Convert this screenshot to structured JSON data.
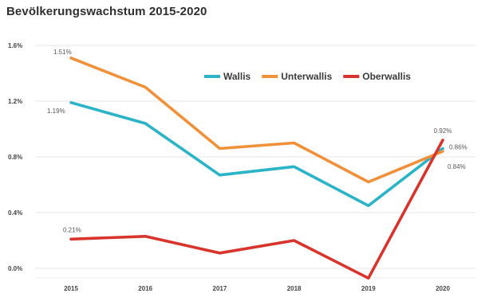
{
  "title": "Bevölkerungswachstum 2015-2020",
  "chart_data": {
    "type": "line",
    "title": "Bevölkerungswachstum 2015-2020",
    "x": [
      "2015",
      "2016",
      "2017",
      "2018",
      "2019",
      "2020"
    ],
    "ylim": [
      0.0,
      1.6
    ],
    "yticks": [
      0.0,
      0.4,
      0.8,
      1.2,
      1.6
    ],
    "ytick_labels": [
      "0.0%",
      "0.4%",
      "0.8%",
      "1.2%",
      "1.6%"
    ],
    "grid": true,
    "legend_position": "top-right",
    "series": [
      {
        "name": "Wallis",
        "color": "#2bb3c8",
        "values": [
          1.19,
          1.04,
          0.67,
          0.73,
          0.45,
          0.86
        ]
      },
      {
        "name": "Unterwallis",
        "color": "#f0913a",
        "values": [
          1.51,
          1.3,
          0.86,
          0.9,
          0.62,
          0.84
        ]
      },
      {
        "name": "Oberwallis",
        "color": "#d8342c",
        "values": [
          0.21,
          0.23,
          0.11,
          0.2,
          -0.07,
          0.92
        ]
      }
    ],
    "annotations": [
      {
        "text": "1.51%",
        "series": "Unterwallis",
        "x": "2015"
      },
      {
        "text": "1.19%",
        "series": "Wallis",
        "x": "2015"
      },
      {
        "text": "0.21%",
        "series": "Oberwallis",
        "x": "2015"
      },
      {
        "text": "0.92%",
        "series": "Oberwallis",
        "x": "2020"
      },
      {
        "text": "0.86%",
        "series": "Wallis",
        "x": "2020"
      },
      {
        "text": "0.84%",
        "series": "Unterwallis",
        "x": "2020"
      }
    ]
  }
}
